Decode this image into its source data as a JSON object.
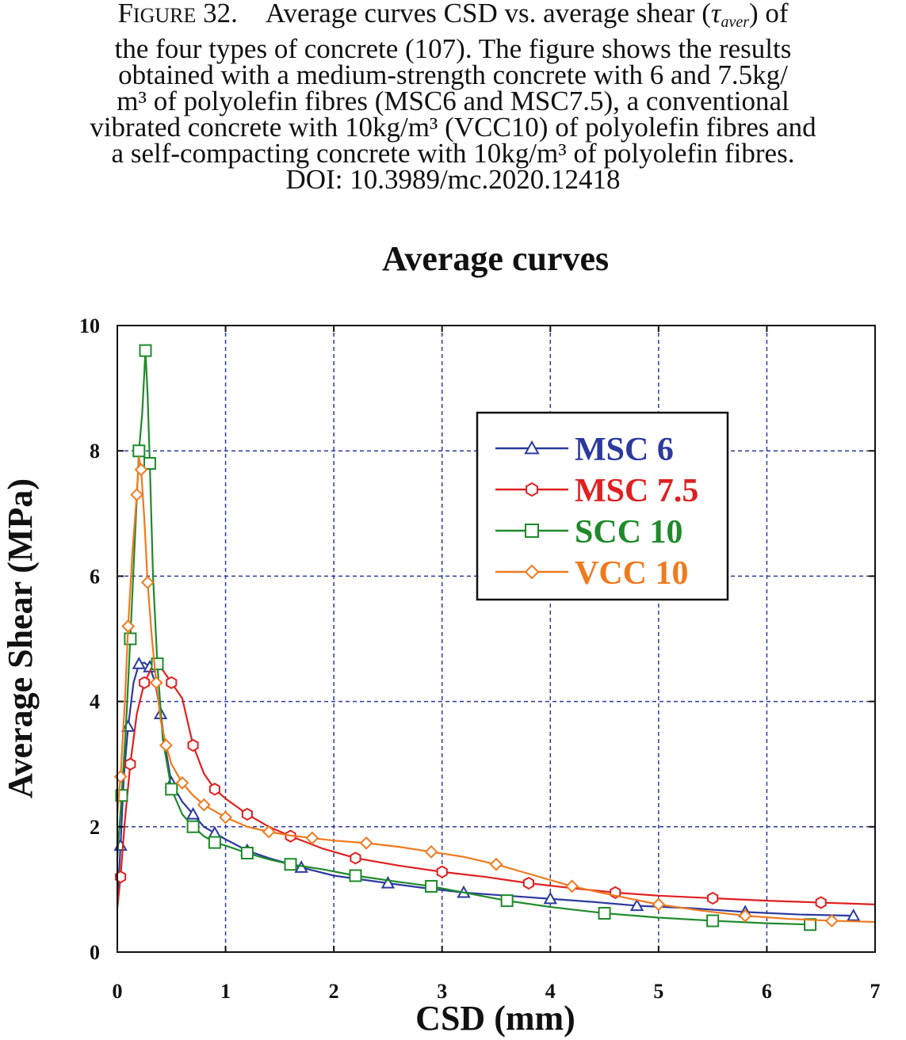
{
  "caption": {
    "figure_prefix_big": "F",
    "figure_prefix_small": "IGURE",
    "figure_number": " 32.",
    "line1_a": "Average curves CSD vs. average shear (",
    "tau_symbol": "τ",
    "tau_subscript": "aver",
    "line1_b": ") of",
    "line2": "the four types of concrete  (107). The figure shows the results",
    "line3": "obtained with a medium-strength concrete with 6 and 7.5kg/",
    "line4": "m³ of polyolefin fibres (MSC6 and MSC7.5), a conventional",
    "line5": "vibrated concrete with 10kg/m³ (VCC10) of polyolefin fibres and",
    "line6": "a self-compacting concrete with 10kg/m³ of polyolefin fibres.",
    "line7": "DOI: 10.3989/mc.2020.12418"
  },
  "chart_data": {
    "type": "line",
    "title": "Average curves",
    "xlabel": "CSD (mm)",
    "ylabel": "Average Shear (MPa)",
    "xlim": [
      0,
      7
    ],
    "ylim": [
      0,
      10
    ],
    "xticks": [
      "0",
      "1",
      "2",
      "3",
      "4",
      "5",
      "6",
      "7"
    ],
    "yticks": [
      "0",
      "2",
      "4",
      "6",
      "8",
      "10"
    ],
    "grid": true,
    "grid_style": "dashed",
    "legend_position": "upper-right",
    "series": [
      {
        "name": "MSC 6",
        "color": "#2b3a9e",
        "marker": "triangle",
        "x": [
          0.0,
          0.03,
          0.06,
          0.1,
          0.15,
          0.2,
          0.25,
          0.3,
          0.35,
          0.4,
          0.45,
          0.5,
          0.6,
          0.7,
          0.8,
          0.9,
          1.0,
          1.2,
          1.4,
          1.7,
          2.0,
          2.5,
          2.8,
          3.2,
          3.6,
          4.0,
          4.4,
          4.8,
          5.3,
          5.8,
          6.3,
          6.8
        ],
        "y": [
          0.8,
          1.7,
          2.8,
          3.6,
          4.3,
          4.6,
          4.62,
          4.55,
          4.3,
          3.8,
          3.2,
          2.7,
          2.4,
          2.2,
          2.0,
          1.9,
          1.8,
          1.62,
          1.5,
          1.35,
          1.22,
          1.1,
          1.03,
          0.95,
          0.9,
          0.85,
          0.8,
          0.74,
          0.7,
          0.64,
          0.6,
          0.58
        ]
      },
      {
        "name": "MSC 7.5",
        "color": "#e02020",
        "marker": "hexagon",
        "x": [
          0.0,
          0.03,
          0.07,
          0.12,
          0.18,
          0.25,
          0.32,
          0.37,
          0.42,
          0.5,
          0.6,
          0.7,
          0.8,
          0.9,
          1.0,
          1.2,
          1.4,
          1.6,
          1.9,
          2.2,
          2.6,
          3.0,
          3.4,
          3.8,
          4.2,
          4.6,
          5.0,
          5.5,
          6.0,
          6.5,
          7.0
        ],
        "y": [
          0.7,
          1.2,
          2.1,
          3.0,
          3.8,
          4.3,
          4.55,
          4.6,
          4.5,
          4.3,
          4.05,
          3.3,
          2.85,
          2.6,
          2.45,
          2.2,
          2.0,
          1.85,
          1.65,
          1.5,
          1.38,
          1.28,
          1.2,
          1.1,
          1.02,
          0.95,
          0.9,
          0.86,
          0.82,
          0.79,
          0.76
        ]
      },
      {
        "name": "SCC 10",
        "color": "#1f8a2a",
        "marker": "square",
        "x": [
          0.0,
          0.04,
          0.08,
          0.12,
          0.16,
          0.2,
          0.23,
          0.26,
          0.28,
          0.3,
          0.33,
          0.37,
          0.42,
          0.5,
          0.6,
          0.7,
          0.8,
          0.9,
          1.0,
          1.2,
          1.4,
          1.6,
          1.9,
          2.2,
          2.6,
          2.9,
          3.2,
          3.6,
          4.0,
          4.5,
          5.0,
          5.5,
          6.0,
          6.4
        ],
        "y": [
          1.5,
          2.5,
          3.6,
          5.0,
          6.5,
          8.0,
          8.6,
          9.6,
          8.9,
          7.8,
          6.0,
          4.6,
          3.4,
          2.6,
          2.2,
          2.0,
          1.85,
          1.75,
          1.7,
          1.58,
          1.48,
          1.4,
          1.32,
          1.22,
          1.12,
          1.05,
          0.95,
          0.82,
          0.72,
          0.62,
          0.55,
          0.5,
          0.46,
          0.44
        ]
      },
      {
        "name": "VCC 10",
        "color": "#f07a1e",
        "marker": "diamond",
        "x": [
          0.0,
          0.03,
          0.07,
          0.1,
          0.14,
          0.18,
          0.2,
          0.22,
          0.25,
          0.28,
          0.32,
          0.36,
          0.4,
          0.45,
          0.5,
          0.6,
          0.7,
          0.8,
          0.9,
          1.0,
          1.2,
          1.4,
          1.6,
          1.8,
          2.0,
          2.3,
          2.6,
          2.9,
          3.2,
          3.5,
          3.8,
          4.2,
          4.6,
          5.0,
          5.4,
          5.8,
          6.2,
          6.6,
          7.0
        ],
        "y": [
          2.2,
          2.8,
          4.0,
          5.2,
          6.4,
          7.3,
          7.9,
          7.7,
          6.9,
          5.9,
          5.0,
          4.3,
          3.7,
          3.3,
          3.0,
          2.7,
          2.5,
          2.35,
          2.25,
          2.15,
          2.0,
          1.92,
          1.86,
          1.82,
          1.78,
          1.74,
          1.68,
          1.6,
          1.52,
          1.4,
          1.25,
          1.05,
          0.9,
          0.76,
          0.66,
          0.58,
          0.53,
          0.5,
          0.48
        ]
      }
    ]
  }
}
